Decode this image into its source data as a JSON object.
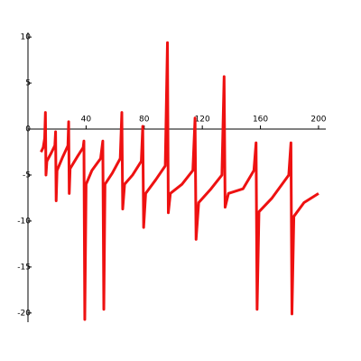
{
  "chart_data": {
    "type": "line",
    "x": [
      9,
      10.5,
      11.5,
      12,
      12.4,
      13,
      16,
      18.5,
      19,
      19.4,
      20,
      24,
      27.5,
      28,
      28.4,
      29,
      34,
      38,
      38.5,
      39.1,
      40,
      44,
      50,
      51.5,
      52.2,
      53,
      58,
      63.5,
      64.6,
      65.2,
      66.5,
      72,
      78,
      79,
      79.6,
      81,
      88,
      94.5,
      96,
      96.6,
      98,
      106,
      113.5,
      115,
      115.7,
      117.5,
      126,
      133.5,
      135,
      135.7,
      138,
      148,
      155.5,
      157,
      157.7,
      159,
      168,
      179.5,
      181,
      181.7,
      183,
      190,
      200
    ],
    "series": [
      {
        "color": "#ee1111",
        "values": [
          -2.5,
          -2,
          -1,
          1.8,
          -5,
          -3.5,
          -2.6,
          -1.8,
          -0.3,
          -7.8,
          -4.5,
          -3,
          -1.8,
          0.8,
          -7,
          -4.3,
          -3,
          -2,
          -1.3,
          -20.7,
          -6,
          -4.5,
          -3.2,
          -1.3,
          -19.6,
          -6,
          -4.8,
          -3.2,
          1.8,
          -8.7,
          -6,
          -5,
          -3.5,
          0.3,
          -10.7,
          -7,
          -5.5,
          -4,
          9.4,
          -9.1,
          -7,
          -6,
          -4.5,
          1.2,
          -12,
          -8,
          -6.5,
          -5,
          5.7,
          -8.5,
          -7,
          -6.5,
          -4.5,
          -1.5,
          -19.6,
          -9,
          -7.5,
          -5,
          -1.5,
          -20.1,
          -9.5,
          -8,
          -7
        ]
      }
    ],
    "xlim": [
      0,
      205
    ],
    "ylim": [
      -21,
      10.5
    ],
    "xticks": [
      40,
      80,
      120,
      160,
      200
    ],
    "yticks": [
      -20,
      -15,
      -10,
      -5,
      0,
      5,
      10
    ]
  }
}
